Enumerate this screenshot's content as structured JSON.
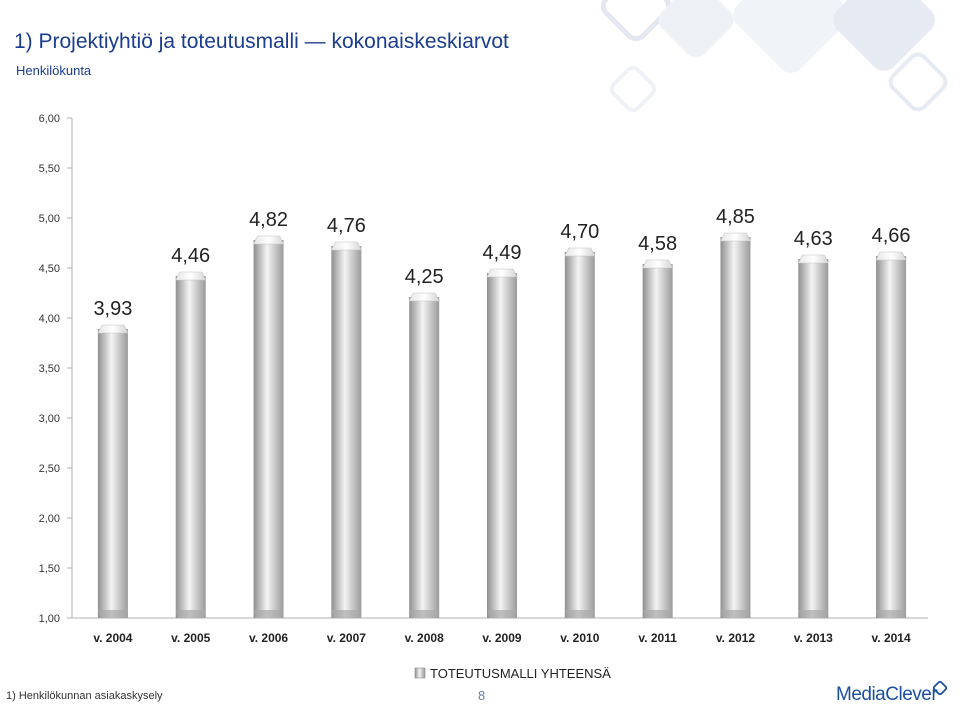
{
  "header": {
    "title": "1) Projektiyhtiö ja toteutusmalli — kokonaiskeskiarvot",
    "subtitle": "Henkilökunta"
  },
  "footer": {
    "source": "1) Henkilökunnan asiakaskysely",
    "page_number": "8",
    "logo_text": "MediaClever"
  },
  "colors": {
    "bar_light": "#f2f2f2",
    "bar_mid": "#c7c7c7",
    "bar_dark": "#8c8c8c",
    "axis": "#b0b0b0",
    "label": "#222222",
    "accent": "#1b4fa0"
  },
  "chart_data": {
    "type": "bar",
    "categories": [
      "v. 2004",
      "v. 2005",
      "v. 2006",
      "v. 2007",
      "v. 2008",
      "v. 2009",
      "v. 2010",
      "v. 2011",
      "v. 2012",
      "v. 2013",
      "v. 2014"
    ],
    "series": [
      {
        "name": "TOTEUTUSMALLI YHTEENSÄ",
        "values": [
          3.93,
          4.46,
          4.82,
          4.76,
          4.25,
          4.49,
          4.7,
          4.58,
          4.85,
          4.63,
          4.66
        ],
        "labels": [
          "3,93",
          "4,46",
          "4,82",
          "4,76",
          "4,25",
          "4,49",
          "4,70",
          "4,58",
          "4,85",
          "4,63",
          "4,66"
        ]
      }
    ],
    "yticks": [
      "1,00",
      "1,50",
      "2,00",
      "2,50",
      "3,00",
      "3,50",
      "4,00",
      "4,50",
      "5,00",
      "5,50",
      "6,00"
    ],
    "ylim": [
      1,
      6
    ],
    "grid": false,
    "legend": "bottom"
  }
}
